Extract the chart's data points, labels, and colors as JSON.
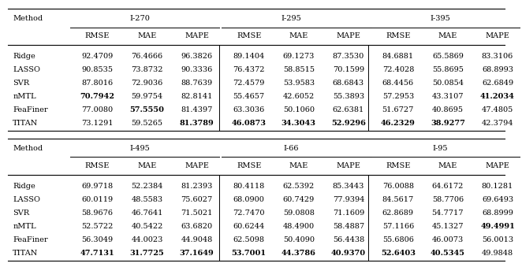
{
  "titles_top": [
    "I-270",
    "I-295",
    "I-395"
  ],
  "titles_bot": [
    "I-495",
    "I-66",
    "I-95"
  ],
  "methods": [
    "Ridge",
    "LASSO",
    "SVR",
    "nMTL",
    "FeaFiner",
    "TITAN"
  ],
  "metrics": [
    "RMSE",
    "MAE",
    "MAPE"
  ],
  "tables_top": [
    {
      "Ridge": [
        "92.4709",
        "76.4666",
        "96.3826"
      ],
      "LASSO": [
        "90.8535",
        "73.8732",
        "90.3336"
      ],
      "SVR": [
        "87.8016",
        "72.9036",
        "88.7639"
      ],
      "nMTL": [
        "70.7942",
        "59.9754",
        "82.8141"
      ],
      "FeaFiner": [
        "77.0080",
        "57.5550",
        "81.4397"
      ],
      "TITAN": [
        "73.1291",
        "59.5265",
        "81.3789"
      ]
    },
    {
      "Ridge": [
        "89.1404",
        "69.1273",
        "87.3530"
      ],
      "LASSO": [
        "76.4372",
        "58.8515",
        "70.1599"
      ],
      "SVR": [
        "72.4579",
        "53.9583",
        "68.6843"
      ],
      "nMTL": [
        "55.4657",
        "42.6052",
        "55.3893"
      ],
      "FeaFiner": [
        "63.3036",
        "50.1060",
        "62.6381"
      ],
      "TITAN": [
        "46.0873",
        "34.3043",
        "52.9296"
      ]
    },
    {
      "Ridge": [
        "84.6881",
        "65.5869",
        "83.3106"
      ],
      "LASSO": [
        "72.4028",
        "55.8695",
        "68.8993"
      ],
      "SVR": [
        "68.4456",
        "50.0854",
        "62.6849"
      ],
      "nMTL": [
        "57.2953",
        "43.3107",
        "41.2034"
      ],
      "FeaFiner": [
        "51.6727",
        "40.8695",
        "47.4805"
      ],
      "TITAN": [
        "46.2329",
        "38.9277",
        "42.3794"
      ]
    }
  ],
  "tables_bot": [
    {
      "Ridge": [
        "69.9718",
        "52.2384",
        "81.2393"
      ],
      "LASSO": [
        "60.0119",
        "48.5583",
        "75.6027"
      ],
      "SVR": [
        "58.9676",
        "46.7641",
        "71.5021"
      ],
      "nMTL": [
        "52.5722",
        "40.5422",
        "63.6820"
      ],
      "FeaFiner": [
        "56.3049",
        "44.0023",
        "44.9048"
      ],
      "TITAN": [
        "47.7131",
        "31.7725",
        "37.1649"
      ]
    },
    {
      "Ridge": [
        "80.4118",
        "62.5392",
        "85.3443"
      ],
      "LASSO": [
        "68.0900",
        "60.7429",
        "77.9394"
      ],
      "SVR": [
        "72.7470",
        "59.0808",
        "71.1609"
      ],
      "nMTL": [
        "60.6244",
        "48.4900",
        "58.4887"
      ],
      "FeaFiner": [
        "62.5098",
        "50.4090",
        "56.4438"
      ],
      "TITAN": [
        "53.7001",
        "44.3786",
        "40.9370"
      ]
    },
    {
      "Ridge": [
        "76.0088",
        "64.6172",
        "80.1281"
      ],
      "LASSO": [
        "84.5617",
        "58.7706",
        "69.6493"
      ],
      "SVR": [
        "62.8689",
        "54.7717",
        "68.8999"
      ],
      "nMTL": [
        "57.1166",
        "45.1327",
        "49.4991"
      ],
      "FeaFiner": [
        "55.6806",
        "46.0073",
        "56.0013"
      ],
      "TITAN": [
        "52.6403",
        "40.5345",
        "49.9848"
      ]
    }
  ],
  "bold_top": [
    {
      "nMTL": [
        true,
        false,
        false
      ],
      "FeaFiner": [
        false,
        true,
        false
      ],
      "TITAN": [
        false,
        false,
        true
      ]
    },
    {
      "TITAN": [
        true,
        true,
        true
      ]
    },
    {
      "TITAN": [
        true,
        true,
        false
      ],
      "nMTL": [
        false,
        false,
        true
      ]
    }
  ],
  "bold_bot": [
    {
      "TITAN": [
        true,
        true,
        true
      ]
    },
    {
      "TITAN": [
        true,
        true,
        true
      ]
    },
    {
      "TITAN": [
        true,
        true,
        false
      ],
      "nMTL": [
        false,
        false,
        true
      ]
    }
  ],
  "bg_color": "#ffffff",
  "text_color": "#000000",
  "font_size": 7.0
}
